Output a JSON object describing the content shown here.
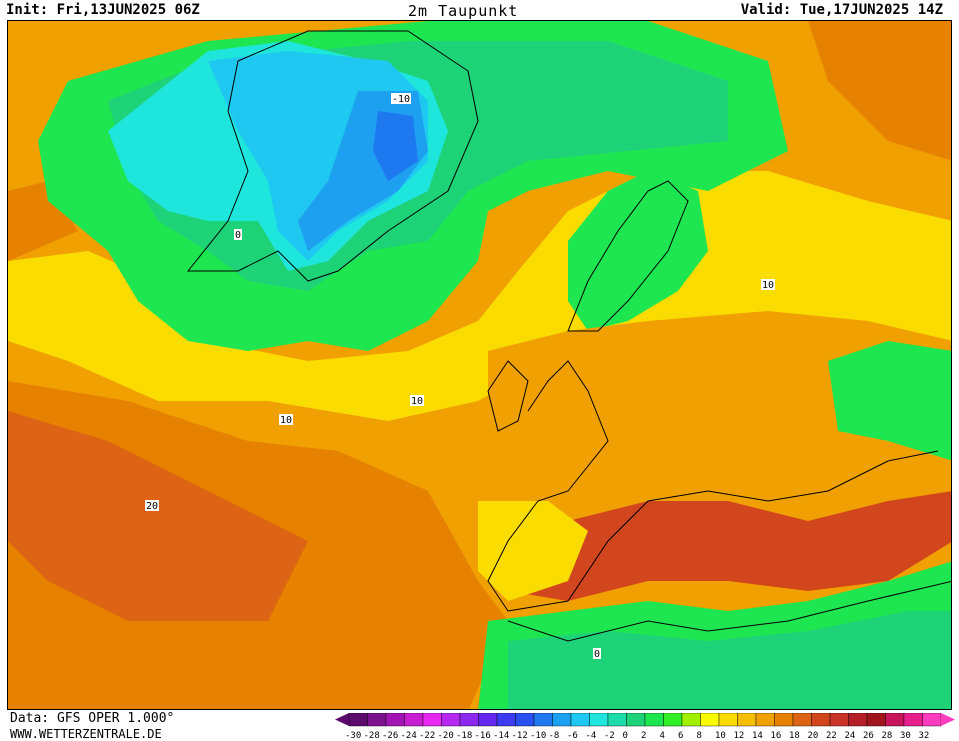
{
  "header": {
    "init": "Init: Fri,13JUN2025 06Z",
    "title": "2m Taupunkt",
    "valid": "Valid: Tue,17JUN2025 14Z"
  },
  "footer": {
    "data_source": "Data: GFS OPER 1.000°",
    "site": "WWW.WETTERZENTRALE.DE"
  },
  "legend": {
    "ticks": [
      "-30",
      "-28",
      "-26",
      "-24",
      "-22",
      "-20",
      "-18",
      "-16",
      "-14",
      "-12",
      "-10",
      "-8",
      "-6",
      "-4",
      "-2",
      "0",
      "2",
      "4",
      "6",
      "8",
      "10",
      "12",
      "14",
      "16",
      "18",
      "20",
      "22",
      "24",
      "26",
      "28",
      "30",
      "32"
    ],
    "colors": [
      "#5c0a6e",
      "#7d1290",
      "#a214b4",
      "#c81ed2",
      "#e628f0",
      "#b428f0",
      "#8c28f0",
      "#6428f0",
      "#3c3cf0",
      "#2850f0",
      "#1e78f0",
      "#1ea0f0",
      "#1ec8f0",
      "#1ee6dc",
      "#1edcaa",
      "#1ed278",
      "#1ee650",
      "#32f028",
      "#a0f000",
      "#fafa00",
      "#fadc00",
      "#f5be00",
      "#f0a000",
      "#e68200",
      "#dc6414",
      "#d2461e",
      "#c83228",
      "#b41e28",
      "#a0141e",
      "#c8145a",
      "#e61e8c",
      "#ff3cbe"
    ]
  },
  "contour_labels": [
    "10",
    "0",
    "-10",
    "10",
    "20",
    "10",
    "0"
  ]
}
